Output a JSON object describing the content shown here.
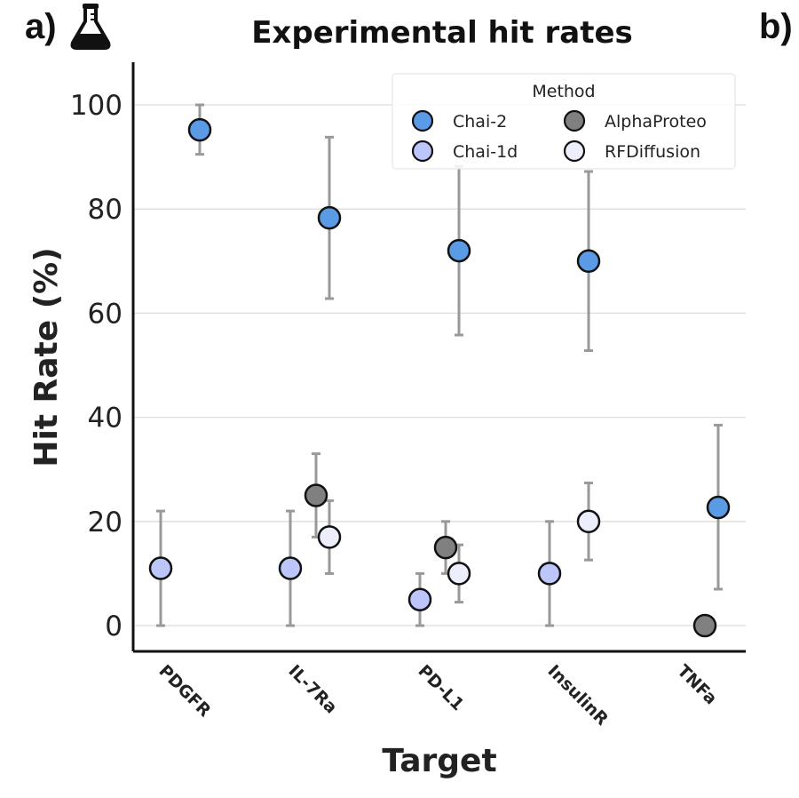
{
  "panel_labels": {
    "a": "a)",
    "b": "b)"
  },
  "icons": {
    "flask": "flask-icon"
  },
  "chart_data": {
    "type": "scatter",
    "title": "Experimental hit rates",
    "xlabel": "Target",
    "ylabel": "Hit Rate (%)",
    "categories": [
      "PDGFR",
      "IL-7Ra",
      "PD-L1",
      "InsulinR",
      "TNFa"
    ],
    "ylim": [
      -5,
      107
    ],
    "yticks": [
      0,
      20,
      40,
      60,
      80,
      100
    ],
    "grid": "horizontal",
    "legend": {
      "title": "Method",
      "placement": "top-right"
    },
    "series": [
      {
        "name": "Chai-2",
        "color": "#5b9be6",
        "offset": 1,
        "values": [
          95.2,
          78.3,
          72.0,
          70.0,
          22.7
        ],
        "err_low": [
          90.5,
          62.8,
          55.8,
          52.8,
          7.0
        ],
        "err_high": [
          100,
          93.8,
          88.2,
          87.2,
          38.5
        ]
      },
      {
        "name": "Chai-1d",
        "color": "#bcc6fb",
        "offset": -1,
        "values": [
          11,
          11,
          5,
          10,
          null
        ],
        "err_low": [
          0,
          0,
          0,
          0,
          null
        ],
        "err_high": [
          22,
          22,
          10,
          20,
          null
        ]
      },
      {
        "name": "AlphaProteo",
        "color": "#808080",
        "offset": 0.5,
        "values": [
          null,
          25,
          15,
          null,
          0
        ],
        "err_low": [
          null,
          17,
          10,
          null,
          0
        ],
        "err_high": [
          null,
          33,
          20,
          null,
          0
        ]
      },
      {
        "name": "RFDiffusion",
        "color": "#eceefc",
        "offset": 1,
        "values": [
          null,
          17,
          10,
          20,
          null
        ],
        "err_low": [
          null,
          10,
          4.5,
          12.6,
          null
        ],
        "err_high": [
          null,
          24,
          15.5,
          27.4,
          null
        ]
      }
    ]
  }
}
